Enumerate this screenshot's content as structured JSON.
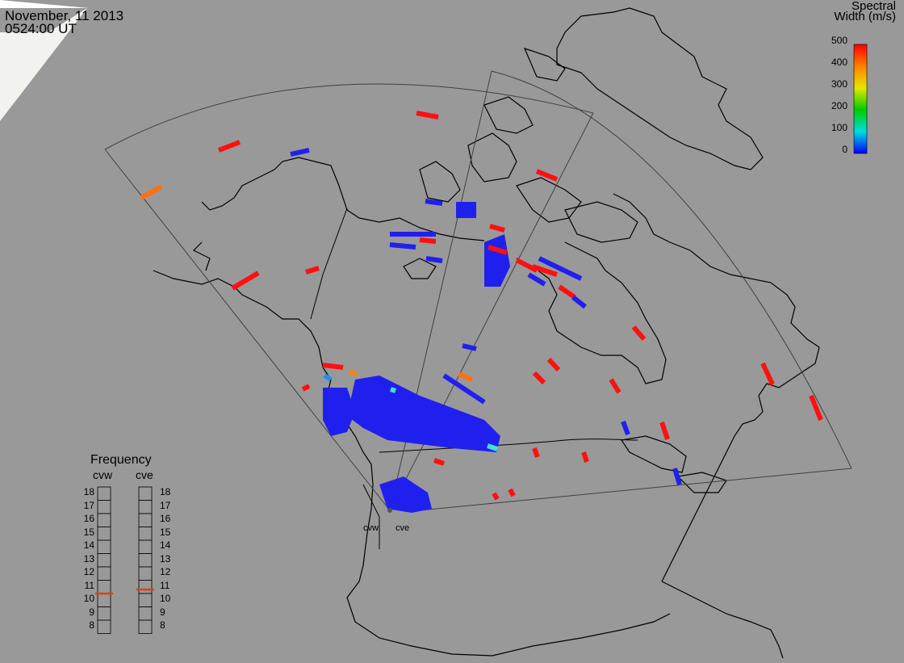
{
  "header": {
    "date": "November, 11 2013",
    "time": "0524:00 UT"
  },
  "colorbar": {
    "title_line1": "Spectral",
    "title_line2": "Width (m/s)",
    "ticks": [
      "500",
      "400",
      "300",
      "200",
      "100",
      "0"
    ],
    "colors": [
      "#ff0000",
      "#ff8000",
      "#e6e600",
      "#00cc00",
      "#00dddd",
      "#0000ff"
    ]
  },
  "frequency": {
    "title": "Frequency",
    "radars": [
      {
        "name": "cvw",
        "value": 10.5
      },
      {
        "name": "cve",
        "value": 10.8
      }
    ],
    "scale": [
      "18",
      "17",
      "16",
      "15",
      "14",
      "13",
      "12",
      "11",
      "10",
      "9",
      "8"
    ],
    "marker_color": "#e04010"
  },
  "sites": [
    "cvw",
    "cve"
  ],
  "colors": {
    "background": "#999999",
    "coast": "#000000",
    "fov": "#404040",
    "low_width": "#2020ee",
    "high_width": "#ff1010"
  }
}
